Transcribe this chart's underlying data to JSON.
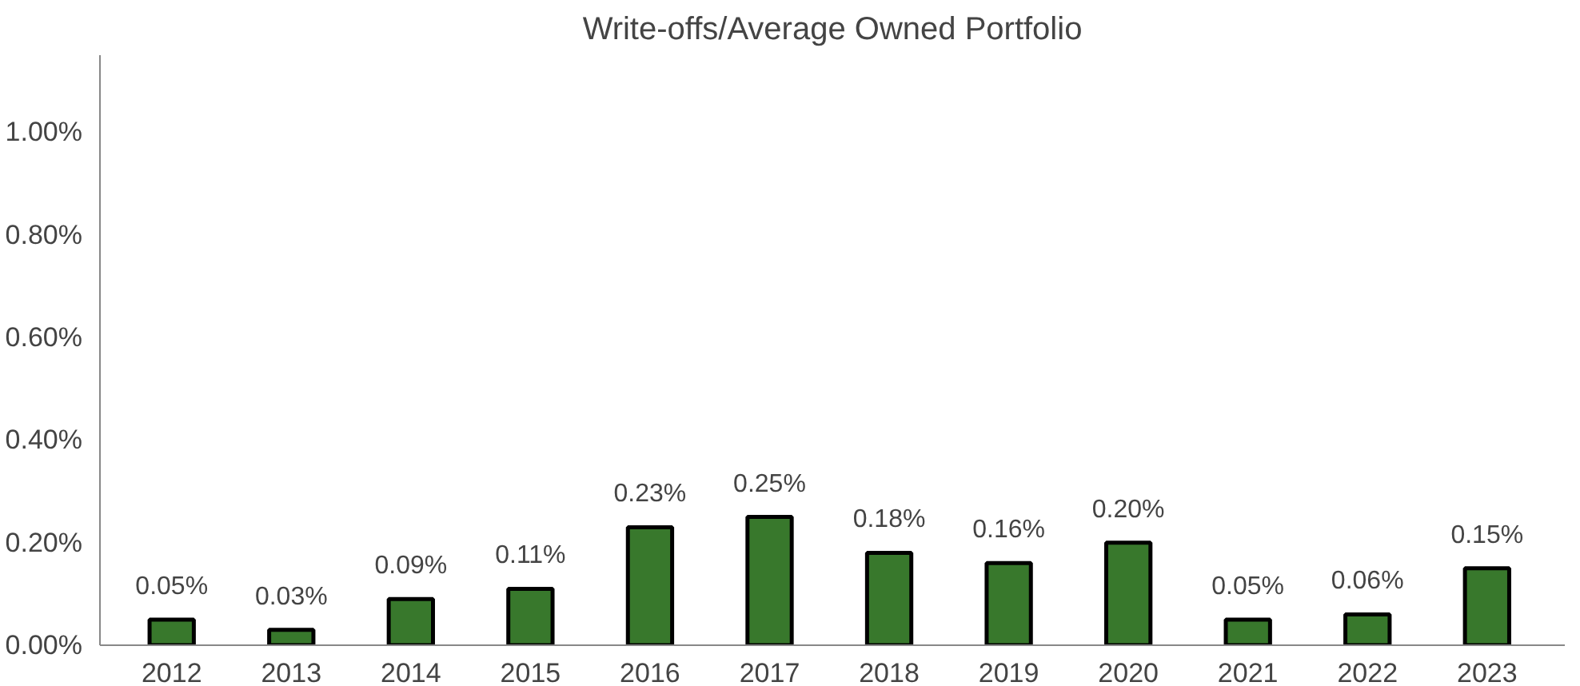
{
  "chart_data": {
    "type": "bar",
    "title": "Write-offs/Average Owned Portfolio",
    "categories": [
      "2012",
      "2013",
      "2014",
      "2015",
      "2016",
      "2017",
      "2018",
      "2019",
      "2020",
      "2021",
      "2022",
      "2023"
    ],
    "values": [
      0.05,
      0.03,
      0.09,
      0.11,
      0.23,
      0.25,
      0.18,
      0.16,
      0.2,
      0.05,
      0.06,
      0.15
    ],
    "value_labels": [
      "0.05%",
      "0.03%",
      "0.09%",
      "0.11%",
      "0.23%",
      "0.25%",
      "0.18%",
      "0.16%",
      "0.20%",
      "0.05%",
      "0.06%",
      "0.15%"
    ],
    "color": "#38782c",
    "ylim": [
      0,
      1.15
    ],
    "yticks": [
      {
        "value": 0,
        "label": "0.00%"
      },
      {
        "value": 0.2,
        "label": "0.20%"
      },
      {
        "value": 0.4,
        "label": "0.40%"
      },
      {
        "value": 0.6,
        "label": "0.60%"
      },
      {
        "value": 0.8,
        "label": "0.80%"
      },
      {
        "value": 1.0,
        "label": "1.00%"
      }
    ],
    "grid": false
  }
}
